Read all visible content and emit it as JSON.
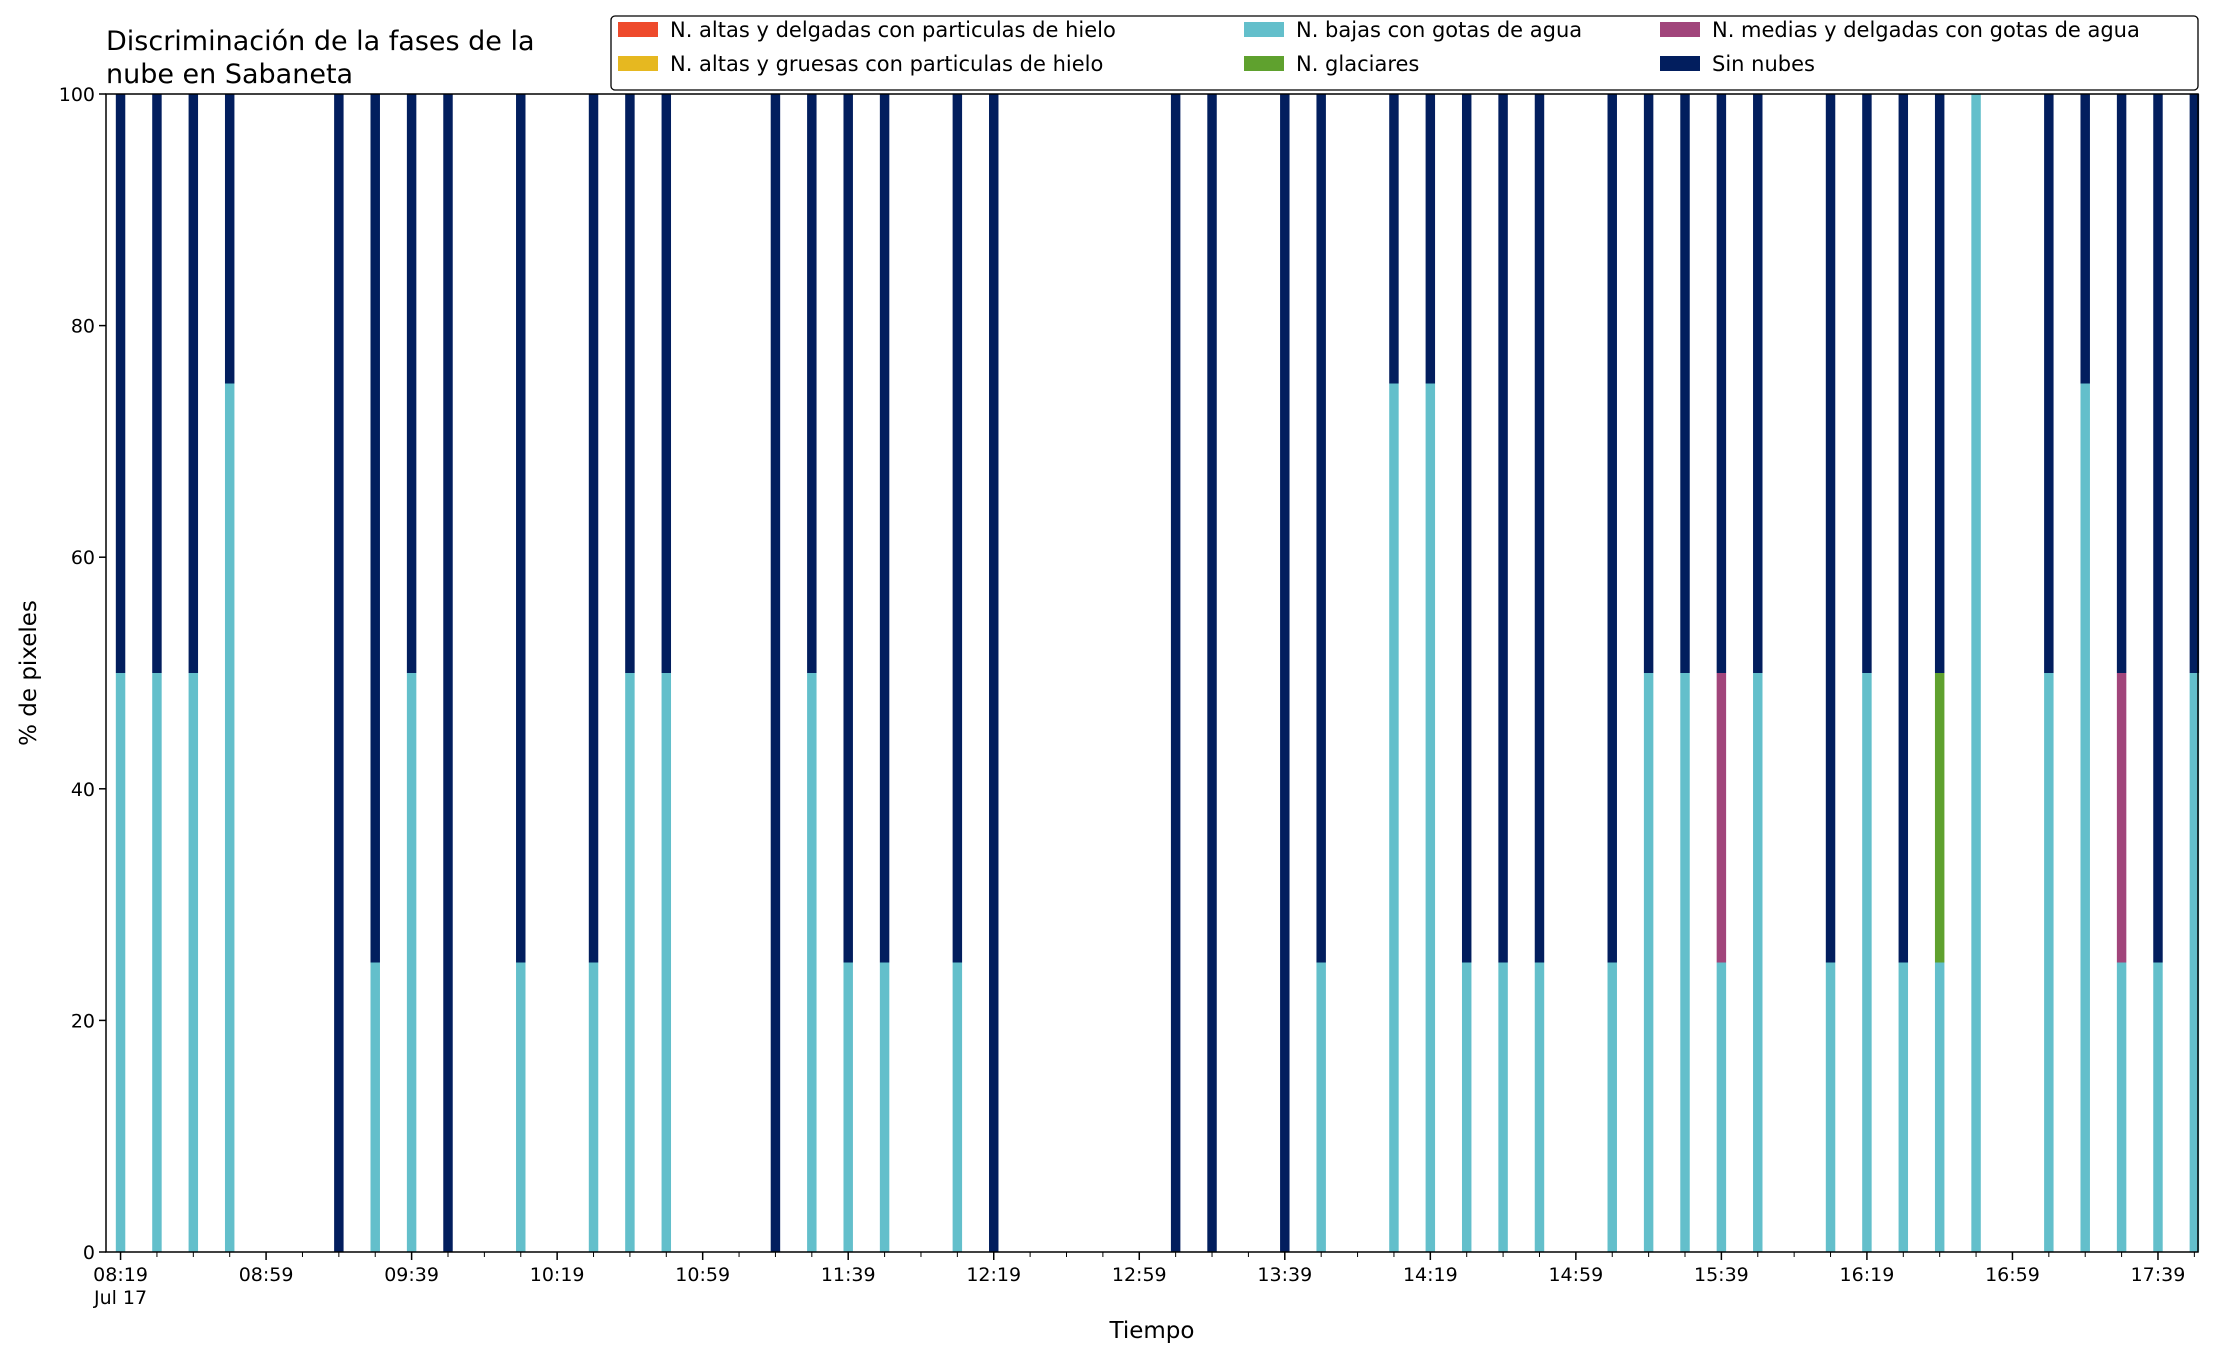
{
  "chart_data": {
    "type": "bar",
    "stacked": true,
    "title_lines": [
      "Discriminación de la fases de la",
      "nube en Sabaneta"
    ],
    "xlabel": "Tiempo",
    "ylabel": "% de pixeles",
    "ylim": [
      0,
      100
    ],
    "yticks": [
      0,
      20,
      40,
      60,
      80,
      100
    ],
    "x_range_minutes": [
      495,
      1070
    ],
    "xtick_labels": [
      {
        "t": 499,
        "label": "08:19",
        "sub": "Jul 17"
      },
      {
        "t": 539,
        "label": "08:59"
      },
      {
        "t": 579,
        "label": "09:39"
      },
      {
        "t": 619,
        "label": "10:19"
      },
      {
        "t": 659,
        "label": "10:59"
      },
      {
        "t": 699,
        "label": "11:39"
      },
      {
        "t": 739,
        "label": "12:19"
      },
      {
        "t": 779,
        "label": "12:59"
      },
      {
        "t": 819,
        "label": "13:39"
      },
      {
        "t": 859,
        "label": "14:19"
      },
      {
        "t": 899,
        "label": "14:59"
      },
      {
        "t": 939,
        "label": "15:39"
      },
      {
        "t": 979,
        "label": "16:19"
      },
      {
        "t": 1019,
        "label": "16:59"
      },
      {
        "t": 1059,
        "label": "17:39"
      }
    ],
    "legend_position": "top-right",
    "grid": false,
    "bar_width_minutes": 5,
    "series": [
      {
        "name": "N. altas y delgadas con particulas de hielo",
        "color": "#ee4a2c"
      },
      {
        "name": "N. altas y gruesas con particulas de hielo",
        "color": "#e6b820"
      },
      {
        "name": "N. bajas con gotas de agua",
        "color": "#63bfcb"
      },
      {
        "name": "N. glaciares",
        "color": "#5fa12e"
      },
      {
        "name": "N. medias y delgadas con gotas de agua",
        "color": "#a1457b"
      },
      {
        "name": "Sin nubes",
        "color": "#021e5e"
      }
    ],
    "bars": [
      {
        "t": 499,
        "values": [
          0,
          0,
          50,
          0,
          0,
          50
        ]
      },
      {
        "t": 509,
        "values": [
          0,
          0,
          50,
          0,
          0,
          50
        ]
      },
      {
        "t": 519,
        "values": [
          0,
          0,
          50,
          0,
          0,
          50
        ]
      },
      {
        "t": 529,
        "values": [
          0,
          0,
          75,
          0,
          0,
          25
        ]
      },
      {
        "t": 559,
        "values": [
          0,
          0,
          0,
          0,
          0,
          100
        ]
      },
      {
        "t": 569,
        "values": [
          0,
          0,
          25,
          0,
          0,
          75
        ]
      },
      {
        "t": 579,
        "values": [
          0,
          0,
          50,
          0,
          0,
          50
        ]
      },
      {
        "t": 589,
        "values": [
          0,
          0,
          0,
          0,
          0,
          100
        ]
      },
      {
        "t": 609,
        "values": [
          0,
          0,
          25,
          0,
          0,
          75
        ]
      },
      {
        "t": 629,
        "values": [
          0,
          0,
          25,
          0,
          0,
          75
        ]
      },
      {
        "t": 639,
        "values": [
          0,
          0,
          50,
          0,
          0,
          50
        ]
      },
      {
        "t": 649,
        "values": [
          0,
          0,
          50,
          0,
          0,
          50
        ]
      },
      {
        "t": 679,
        "values": [
          0,
          0,
          0,
          0,
          0,
          100
        ]
      },
      {
        "t": 689,
        "values": [
          0,
          0,
          50,
          0,
          0,
          50
        ]
      },
      {
        "t": 699,
        "values": [
          0,
          0,
          25,
          0,
          0,
          75
        ]
      },
      {
        "t": 709,
        "values": [
          0,
          0,
          25,
          0,
          0,
          75
        ]
      },
      {
        "t": 729,
        "values": [
          0,
          0,
          25,
          0,
          0,
          75
        ]
      },
      {
        "t": 739,
        "values": [
          0,
          0,
          0,
          0,
          0,
          100
        ]
      },
      {
        "t": 789,
        "values": [
          0,
          0,
          0,
          0,
          0,
          100
        ]
      },
      {
        "t": 799,
        "values": [
          0,
          0,
          0,
          0,
          0,
          100
        ]
      },
      {
        "t": 819,
        "values": [
          0,
          0,
          0,
          0,
          0,
          100
        ]
      },
      {
        "t": 829,
        "values": [
          0,
          0,
          25,
          0,
          0,
          75
        ]
      },
      {
        "t": 849,
        "values": [
          0,
          0,
          75,
          0,
          0,
          25
        ]
      },
      {
        "t": 859,
        "values": [
          0,
          0,
          75,
          0,
          0,
          25
        ]
      },
      {
        "t": 869,
        "values": [
          0,
          0,
          25,
          0,
          0,
          75
        ]
      },
      {
        "t": 879,
        "values": [
          0,
          0,
          25,
          0,
          0,
          75
        ]
      },
      {
        "t": 889,
        "values": [
          0,
          0,
          25,
          0,
          0,
          75
        ]
      },
      {
        "t": 909,
        "values": [
          0,
          0,
          25,
          0,
          0,
          75
        ]
      },
      {
        "t": 919,
        "values": [
          0,
          0,
          50,
          0,
          0,
          50
        ]
      },
      {
        "t": 929,
        "values": [
          0,
          0,
          50,
          0,
          0,
          50
        ]
      },
      {
        "t": 939,
        "values": [
          0,
          0,
          25,
          0,
          25,
          50
        ]
      },
      {
        "t": 949,
        "values": [
          0,
          0,
          50,
          0,
          0,
          50
        ]
      },
      {
        "t": 969,
        "values": [
          0,
          0,
          25,
          0,
          0,
          75
        ]
      },
      {
        "t": 979,
        "values": [
          0,
          0,
          50,
          0,
          0,
          50
        ]
      },
      {
        "t": 989,
        "values": [
          0,
          0,
          25,
          0,
          0,
          75
        ]
      },
      {
        "t": 999,
        "values": [
          0,
          0,
          25,
          25,
          0,
          50
        ]
      },
      {
        "t": 1009,
        "values": [
          0,
          0,
          100,
          0,
          0,
          0
        ]
      },
      {
        "t": 1029,
        "values": [
          0,
          0,
          50,
          0,
          0,
          50
        ]
      },
      {
        "t": 1039,
        "values": [
          0,
          0,
          75,
          0,
          0,
          25
        ]
      },
      {
        "t": 1049,
        "values": [
          0,
          0,
          25,
          0,
          25,
          50
        ]
      },
      {
        "t": 1059,
        "values": [
          0,
          0,
          25,
          0,
          0,
          75
        ]
      },
      {
        "t": 1069,
        "values": [
          0,
          0,
          50,
          0,
          0,
          50
        ]
      }
    ]
  }
}
